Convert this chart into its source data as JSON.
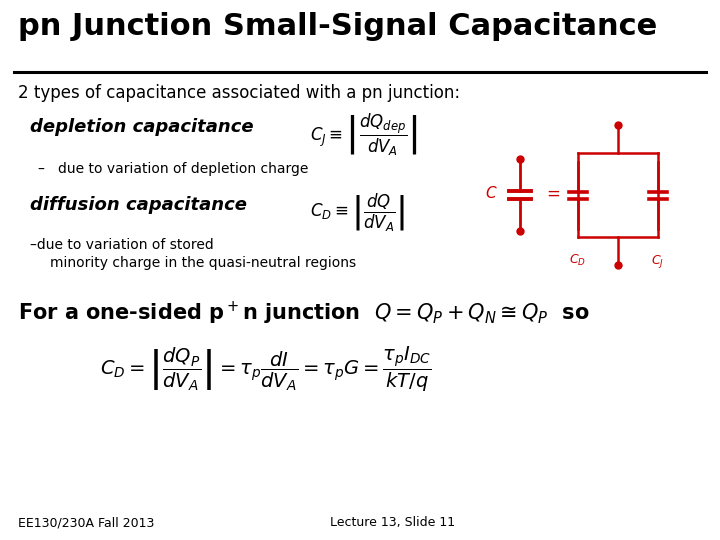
{
  "title": "pn Junction Small-Signal Capacitance",
  "bg_color": "#ffffff",
  "title_color": "#000000",
  "title_fontsize": 22,
  "line_color": "#000000",
  "red_color": "#cc0000",
  "footer_left": "EE130/230A Fall 2013",
  "footer_right": "Lecture 13, Slide 11",
  "footer_fontsize": 9
}
